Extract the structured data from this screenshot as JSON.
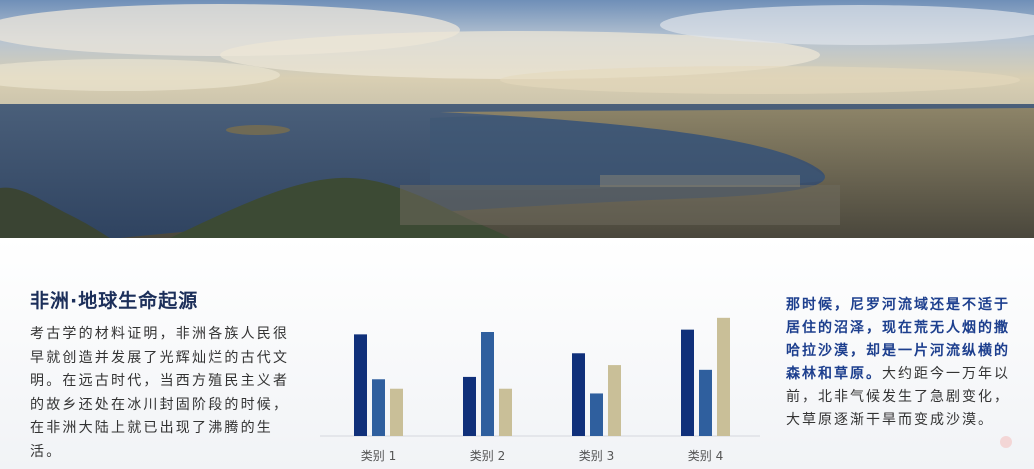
{
  "slide": {
    "title": "非洲·地球生命起源",
    "left_paragraph": "考古学的材料证明，非洲各族人民很早就创造并发展了光辉灿烂的古代文明。在远古时代，当西方殖民主义者的故乡还处在冰川封固阶段的时候，在非洲大陆上就已出现了沸腾的生活。",
    "right_highlight": "那时候，尼罗河流域还是不适于居住的沼泽，现在荒无人烟的撒哈拉沙漠，却是一片河流纵横的森林和草原。",
    "right_rest": "大约距今一万年以前，北非气候发生了急剧变化，大草原逐渐干旱而变成沙漠。"
  },
  "colors": {
    "series1": "#10307a",
    "series2": "#2f5f9e",
    "series3": "#c9bf98"
  },
  "chart_data": {
    "type": "bar",
    "categories": [
      "类别 1",
      "类别 2",
      "类别 3",
      "类别 4"
    ],
    "series": [
      {
        "values": [
          4.3,
          2.5,
          3.5,
          4.5
        ]
      },
      {
        "values": [
          2.4,
          4.4,
          1.8,
          2.8
        ]
      },
      {
        "values": [
          2.0,
          2.0,
          3.0,
          5.0
        ]
      }
    ],
    "ylim": [
      0,
      5.5
    ],
    "grid": false
  }
}
